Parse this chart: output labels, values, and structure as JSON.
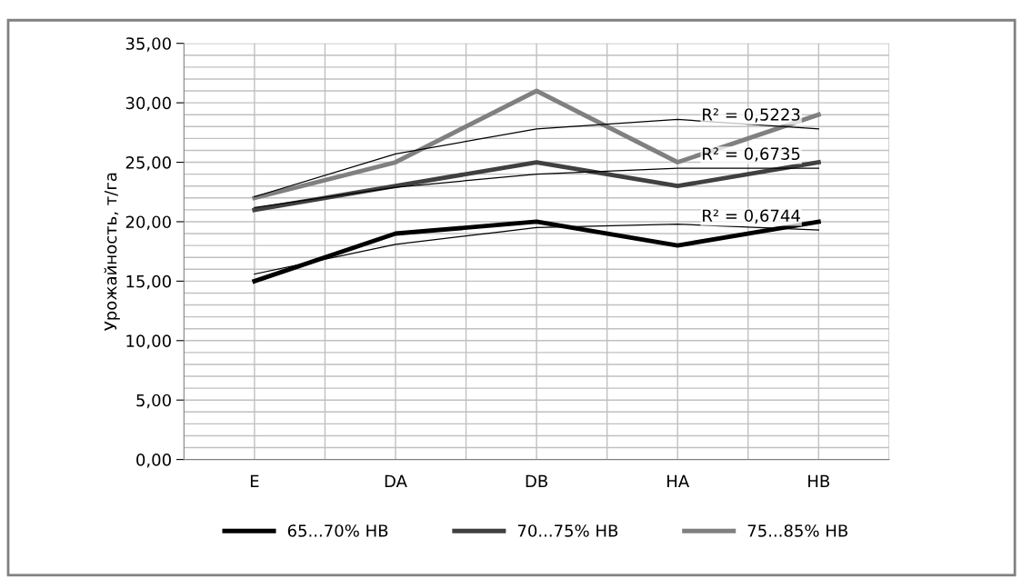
{
  "chart_data": {
    "type": "line",
    "ylabel": "Урожайность, т/га",
    "categories": [
      "E",
      "DA",
      "DB",
      "HA",
      "HB"
    ],
    "series": [
      {
        "name": "65...70% НВ",
        "color": "#000000",
        "values": [
          15,
          19,
          20,
          18,
          20
        ]
      },
      {
        "name": "70...75% НВ",
        "color": "#404040",
        "values": [
          21,
          23,
          25,
          23,
          25
        ]
      },
      {
        "name": "75...85% НВ",
        "color": "#808080",
        "values": [
          22,
          25,
          31,
          25,
          29
        ]
      },
      {
        "color": "#000000",
        "values": [
          15.6,
          18.1,
          19.5,
          19.8,
          19.3
        ]
      },
      {
        "color": "#000000",
        "values": [
          21.2,
          22.9,
          24.0,
          24.5,
          24.5
        ]
      },
      {
        "color": "#000000",
        "values": [
          22.1,
          25.7,
          27.8,
          28.6,
          27.8
        ]
      }
    ],
    "ylim": [
      0,
      35
    ],
    "yticks": [
      {
        "value": 0,
        "label": "0,00"
      },
      {
        "value": 1,
        "label": null
      },
      {
        "value": 2,
        "label": null
      },
      {
        "value": 3,
        "label": null
      },
      {
        "value": 4,
        "label": null
      },
      {
        "value": 5,
        "label": "5,00"
      },
      {
        "value": 6,
        "label": null
      },
      {
        "value": 7,
        "label": null
      },
      {
        "value": 8,
        "label": null
      },
      {
        "value": 9,
        "label": null
      },
      {
        "value": 10,
        "label": "10,00"
      },
      {
        "value": 11,
        "label": null
      },
      {
        "value": 12,
        "label": null
      },
      {
        "value": 13,
        "label": null
      },
      {
        "value": 14,
        "label": null
      },
      {
        "value": 15,
        "label": "15,00"
      },
      {
        "value": 16,
        "label": null
      },
      {
        "value": 17,
        "label": null
      },
      {
        "value": 18,
        "label": null
      },
      {
        "value": 19,
        "label": null
      },
      {
        "value": 20,
        "label": "20,00"
      },
      {
        "value": 21,
        "label": null
      },
      {
        "value": 22,
        "label": null
      },
      {
        "value": 23,
        "label": null
      },
      {
        "value": 24,
        "label": null
      },
      {
        "value": 25,
        "label": "25,00"
      },
      {
        "value": 26,
        "label": null
      },
      {
        "value": 27,
        "label": null
      },
      {
        "value": 28,
        "label": null
      },
      {
        "value": 29,
        "label": null
      },
      {
        "value": 30,
        "label": "30,00"
      },
      {
        "value": 31,
        "label": null
      },
      {
        "value": 32,
        "label": null
      },
      {
        "value": 33,
        "label": null
      },
      {
        "value": 34,
        "label": null
      },
      {
        "value": 35,
        "label": "35,00"
      }
    ],
    "annotations": [
      {
        "text": "R² = 0,5223",
        "x": "HB",
        "y": 27.8
      },
      {
        "text": "R² = 0,6735",
        "x": "HB",
        "y": 24.5
      },
      {
        "text": "R² = 0,6744",
        "x": "HB",
        "y": 19.3
      }
    ],
    "grid": true,
    "legend": "bottom",
    "marker": "none",
    "line_style": "solid"
  }
}
